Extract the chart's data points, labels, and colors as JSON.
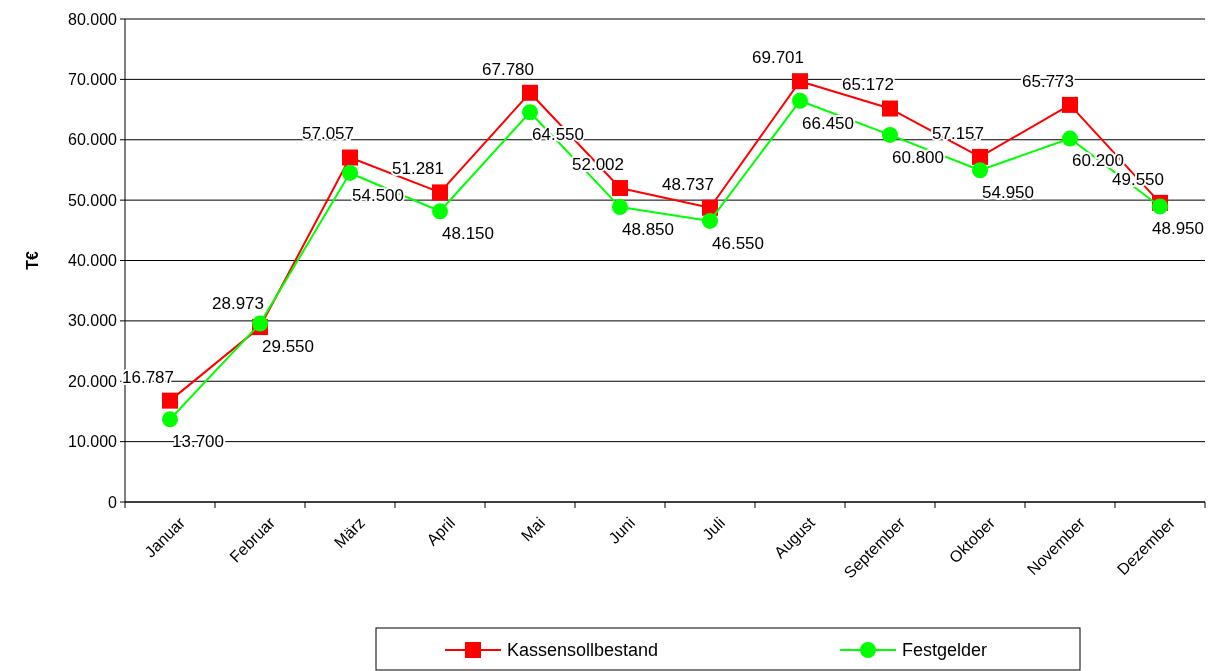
{
  "chart_data": {
    "type": "line",
    "ylabel": "T€",
    "categories": [
      "Januar",
      "Februar",
      "März",
      "April",
      "Mai",
      "Juni",
      "Juli",
      "August",
      "September",
      "Oktober",
      "November",
      "Dezember"
    ],
    "series": [
      {
        "name": "Kassensollbestand",
        "color": "#ff0000",
        "marker": "square",
        "values": [
          16787,
          28973,
          57057,
          51281,
          67780,
          52002,
          48737,
          69701,
          65172,
          57157,
          65773,
          49550
        ],
        "value_labels": [
          "16.787",
          "28.973",
          "57.057",
          "51.281",
          "67.780",
          "52.002",
          "48.737",
          "69.701",
          "65.172",
          "57.157",
          "65.773",
          "49.550"
        ]
      },
      {
        "name": "Festgelder",
        "color": "#00ff00",
        "marker": "circle",
        "values": [
          13700,
          29550,
          54500,
          48150,
          64550,
          48850,
          46550,
          66450,
          60800,
          54950,
          60200,
          48950
        ],
        "value_labels": [
          "13.700",
          "29.550",
          "54.500",
          "48.150",
          "64.550",
          "48.850",
          "46.550",
          "66.450",
          "60.800",
          "54.950",
          "60.200",
          "48.950"
        ]
      }
    ],
    "ylim": [
      0,
      80000
    ],
    "yticks": [
      0,
      {
        "value": 10000,
        "label": "10.000"
      },
      {
        "value": 20000,
        "label": "20.000"
      },
      {
        "value": 30000,
        "label": "30.000"
      },
      {
        "value": 40000,
        "label": "40.000"
      },
      {
        "value": 50000,
        "label": "50.000"
      },
      {
        "value": 60000,
        "label": "60.000"
      },
      {
        "value": 70000,
        "label": "70.000"
      },
      {
        "value": 80000,
        "label": "80.000"
      }
    ],
    "grid": "y",
    "legend": "bottom"
  }
}
